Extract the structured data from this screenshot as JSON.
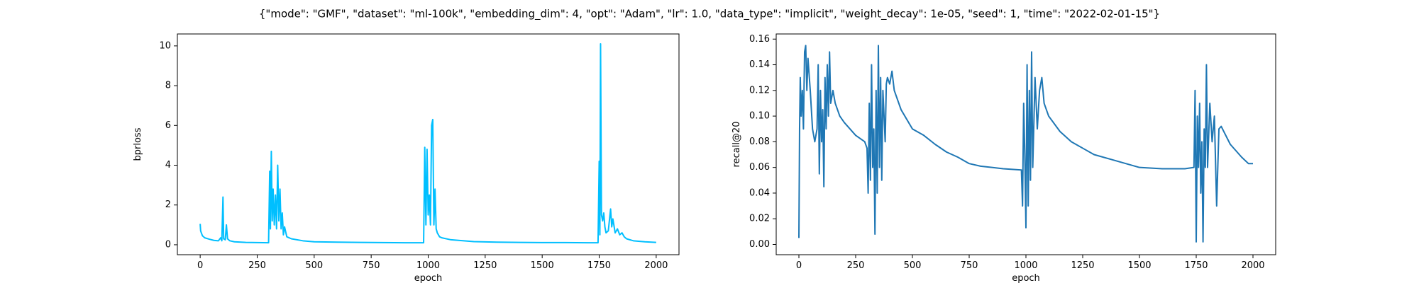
{
  "title": "{\"mode\": \"GMF\", \"dataset\": \"ml-100k\", \"embedding_dim\": 4, \"opt\": \"Adam\", \"lr\": 1.0, \"data_type\": \"implicit\", \"weight_decay\": 1e-05, \"seed\": 1, \"time\": \"2022-02-01-15\"}",
  "chart_data": [
    {
      "type": "line",
      "xlabel": "epoch",
      "ylabel": "bprloss",
      "xlim": [
        -100,
        2100
      ],
      "ylim": [
        -0.5,
        10.6
      ],
      "xticks": [
        0,
        250,
        500,
        750,
        1000,
        1250,
        1500,
        1750,
        2000
      ],
      "yticks": [
        0,
        2,
        4,
        6,
        8,
        10
      ],
      "series": [
        {
          "color": "#00bfff",
          "x": [
            0,
            2,
            5,
            10,
            20,
            40,
            60,
            80,
            90,
            95,
            100,
            103,
            110,
            115,
            120,
            130,
            150,
            200,
            250,
            300,
            305,
            308,
            312,
            316,
            320,
            325,
            330,
            335,
            340,
            345,
            350,
            355,
            360,
            365,
            370,
            380,
            400,
            450,
            500,
            600,
            700,
            800,
            900,
            980,
            985,
            990,
            995,
            1000,
            1005,
            1010,
            1015,
            1020,
            1025,
            1030,
            1035,
            1040,
            1050,
            1060,
            1100,
            1200,
            1300,
            1400,
            1500,
            1600,
            1700,
            1745,
            1750,
            1753,
            1756,
            1760,
            1765,
            1770,
            1775,
            1780,
            1790,
            1800,
            1805,
            1810,
            1820,
            1830,
            1840,
            1850,
            1860,
            1870,
            1900,
            1950,
            2000
          ],
          "values": [
            1.05,
            0.7,
            0.6,
            0.45,
            0.35,
            0.28,
            0.22,
            0.2,
            0.35,
            0.2,
            2.4,
            0.3,
            0.25,
            1.0,
            0.3,
            0.2,
            0.15,
            0.12,
            0.11,
            0.1,
            3.7,
            0.8,
            4.7,
            1.2,
            2.8,
            1.0,
            2.5,
            0.8,
            4.0,
            1.2,
            2.8,
            0.8,
            1.6,
            0.5,
            0.9,
            0.4,
            0.3,
            0.2,
            0.15,
            0.13,
            0.12,
            0.11,
            0.1,
            0.1,
            4.9,
            1.0,
            4.8,
            1.5,
            2.5,
            1.0,
            6.0,
            6.3,
            1.0,
            2.8,
            0.8,
            0.6,
            0.4,
            0.35,
            0.25,
            0.16,
            0.13,
            0.12,
            0.11,
            0.11,
            0.1,
            0.1,
            4.2,
            0.5,
            10.1,
            1.5,
            1.2,
            1.6,
            0.9,
            0.6,
            0.7,
            1.8,
            0.9,
            1.3,
            0.6,
            0.8,
            0.5,
            0.6,
            0.4,
            0.3,
            0.2,
            0.15,
            0.12
          ]
        }
      ]
    },
    {
      "type": "line",
      "xlabel": "epoch",
      "ylabel": "recall@20",
      "xlim": [
        -100,
        2100
      ],
      "ylim": [
        -0.008,
        0.164
      ],
      "xticks": [
        0,
        250,
        500,
        750,
        1000,
        1250,
        1500,
        1750,
        2000
      ],
      "yticks": [
        {
          "value": 0,
          "label": "0.00"
        },
        {
          "value": 0.02,
          "label": "0.02"
        },
        {
          "value": 0.04,
          "label": "0.04"
        },
        {
          "value": 0.06,
          "label": "0.06"
        },
        {
          "value": 0.08,
          "label": "0.08"
        },
        {
          "value": 0.1,
          "label": "0.10"
        },
        {
          "value": 0.12,
          "label": "0.12"
        },
        {
          "value": 0.14,
          "label": "0.14"
        },
        {
          "value": 0.16,
          "label": "0.16"
        }
      ],
      "series": [
        {
          "color": "#1f77b4",
          "x": [
            0,
            3,
            6,
            10,
            15,
            20,
            25,
            30,
            35,
            40,
            50,
            60,
            70,
            80,
            85,
            90,
            95,
            100,
            105,
            110,
            115,
            120,
            125,
            130,
            135,
            140,
            150,
            160,
            180,
            200,
            250,
            290,
            300,
            305,
            310,
            315,
            320,
            325,
            330,
            335,
            340,
            345,
            350,
            355,
            360,
            365,
            370,
            380,
            385,
            390,
            400,
            410,
            420,
            450,
            500,
            550,
            600,
            650,
            700,
            750,
            800,
            900,
            980,
            985,
            990,
            995,
            1000,
            1005,
            1010,
            1015,
            1020,
            1025,
            1030,
            1040,
            1050,
            1060,
            1070,
            1080,
            1100,
            1150,
            1200,
            1250,
            1300,
            1400,
            1500,
            1600,
            1700,
            1740,
            1745,
            1750,
            1755,
            1760,
            1765,
            1770,
            1775,
            1780,
            1785,
            1790,
            1795,
            1800,
            1810,
            1820,
            1830,
            1840,
            1850,
            1860,
            1880,
            1900,
            1950,
            1980,
            2000
          ],
          "values": [
            0.005,
            0.09,
            0.13,
            0.1,
            0.12,
            0.09,
            0.15,
            0.155,
            0.12,
            0.145,
            0.12,
            0.09,
            0.08,
            0.09,
            0.14,
            0.055,
            0.12,
            0.08,
            0.105,
            0.045,
            0.13,
            0.09,
            0.14,
            0.1,
            0.15,
            0.11,
            0.12,
            0.11,
            0.1,
            0.095,
            0.085,
            0.08,
            0.075,
            0.04,
            0.11,
            0.05,
            0.14,
            0.06,
            0.09,
            0.008,
            0.12,
            0.04,
            0.155,
            0.06,
            0.13,
            0.05,
            0.12,
            0.08,
            0.125,
            0.13,
            0.125,
            0.135,
            0.12,
            0.105,
            0.09,
            0.085,
            0.078,
            0.072,
            0.068,
            0.063,
            0.061,
            0.059,
            0.058,
            0.03,
            0.11,
            0.07,
            0.013,
            0.14,
            0.03,
            0.12,
            0.05,
            0.15,
            0.06,
            0.13,
            0.09,
            0.12,
            0.13,
            0.11,
            0.1,
            0.088,
            0.08,
            0.075,
            0.07,
            0.065,
            0.06,
            0.059,
            0.059,
            0.06,
            0.12,
            0.002,
            0.1,
            0.06,
            0.11,
            0.04,
            0.08,
            0.002,
            0.09,
            0.06,
            0.14,
            0.06,
            0.11,
            0.08,
            0.1,
            0.03,
            0.09,
            0.092,
            0.085,
            0.078,
            0.068,
            0.063,
            0.063
          ]
        }
      ]
    }
  ]
}
